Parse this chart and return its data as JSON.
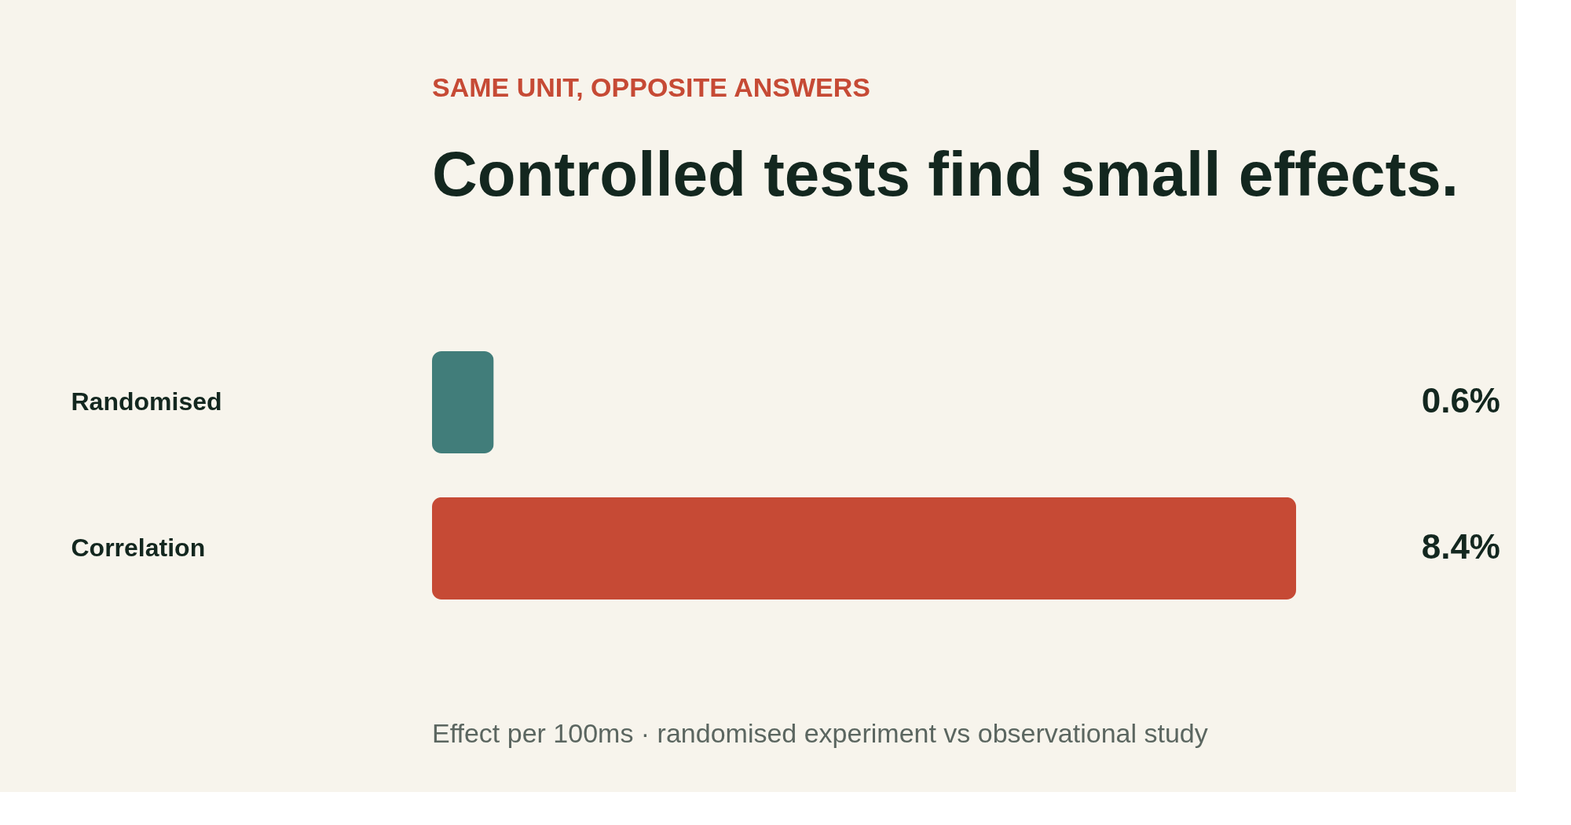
{
  "chart_data": {
    "type": "bar",
    "orientation": "horizontal",
    "subtitle": "SAME UNIT, OPPOSITE ANSWERS",
    "title": "Controlled tests find small effects.",
    "categories": [
      "Randomised",
      "Correlation"
    ],
    "values": [
      0.6,
      8.4
    ],
    "colors": [
      "#417d7a",
      "#c64a35"
    ],
    "xlim": [
      0,
      8.4
    ],
    "data_labels": true,
    "value_labels": [
      "0.6%",
      "8.4%"
    ],
    "tick_labels": "y",
    "annotations": [
      "Effect per 100ms · randomised experiment vs observational study"
    ]
  }
}
